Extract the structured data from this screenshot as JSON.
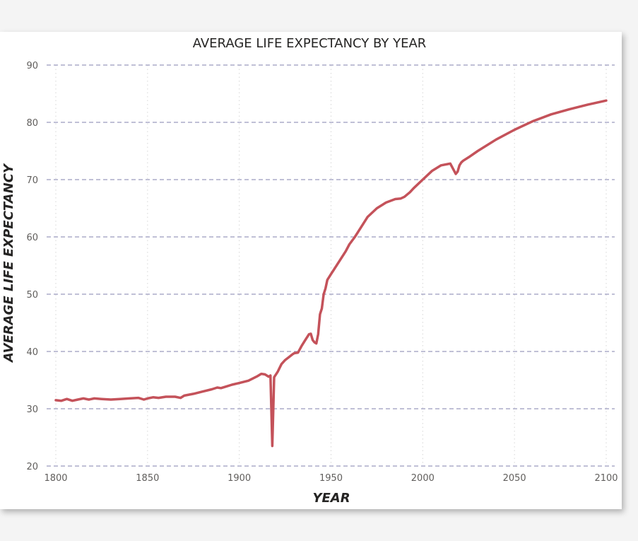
{
  "chart_data": {
    "type": "line",
    "title": "AVERAGE LIFE EXPECTANCY BY YEAR",
    "xlabel": "YEAR",
    "ylabel": "AVERAGE LIFE EXPECTANCY",
    "xlim": [
      1800,
      2100
    ],
    "ylim": [
      20,
      90
    ],
    "x_ticks": [
      1800,
      1850,
      1900,
      1950,
      2000,
      2050,
      2100
    ],
    "y_ticks": [
      20,
      30,
      40,
      50,
      60,
      70,
      80,
      90
    ],
    "grid": true,
    "colors": {
      "line": "#c4525a",
      "grid": "#9a9abe",
      "vgrid": "#d6d6d6"
    },
    "series": [
      {
        "x": [
          1800,
          1803,
          1806,
          1809,
          1812,
          1815,
          1818,
          1821,
          1825,
          1830,
          1835,
          1840,
          1845,
          1848,
          1850,
          1853,
          1856,
          1860,
          1865,
          1868,
          1870,
          1875,
          1880,
          1885,
          1888,
          1890,
          1893,
          1896,
          1900,
          1905,
          1910,
          1912,
          1914,
          1916,
          1917,
          1918,
          1919,
          1921,
          1923,
          1925,
          1927,
          1929,
          1930,
          1932,
          1934,
          1936,
          1938,
          1939,
          1940,
          1941,
          1942,
          1943,
          1944,
          1945,
          1946,
          1947,
          1948,
          1949,
          1950,
          1952,
          1955,
          1958,
          1960,
          1963,
          1966,
          1970,
          1975,
          1980,
          1985,
          1988,
          1990,
          1993,
          1995,
          2000,
          2005,
          2010,
          2015,
          2018,
          2019,
          2020,
          2021,
          2022,
          2025,
          2030,
          2040,
          2050,
          2060,
          2070,
          2080,
          2090,
          2100
        ],
        "values": [
          31.5,
          31.4,
          31.7,
          31.4,
          31.6,
          31.8,
          31.6,
          31.8,
          31.7,
          31.6,
          31.7,
          31.8,
          31.9,
          31.6,
          31.8,
          32.0,
          31.9,
          32.1,
          32.1,
          31.9,
          32.3,
          32.6,
          33.0,
          33.4,
          33.7,
          33.6,
          33.9,
          34.2,
          34.5,
          34.9,
          35.7,
          36.1,
          36.0,
          35.6,
          35.8,
          23.5,
          35.5,
          36.5,
          37.8,
          38.5,
          39.0,
          39.5,
          39.7,
          39.8,
          41.0,
          42.0,
          43.0,
          43.1,
          42.0,
          41.6,
          41.4,
          43.0,
          46.5,
          47.5,
          50.0,
          51.0,
          52.5,
          53.0,
          53.5,
          54.5,
          56.0,
          57.5,
          58.7,
          60.0,
          61.5,
          63.5,
          65.0,
          66.0,
          66.6,
          66.7,
          67.0,
          67.8,
          68.5,
          70.0,
          71.5,
          72.5,
          72.8,
          71.0,
          71.4,
          72.5,
          73.0,
          73.3,
          73.9,
          75.0,
          77.0,
          78.7,
          80.2,
          81.4,
          82.3,
          83.1,
          83.8
        ]
      }
    ]
  }
}
